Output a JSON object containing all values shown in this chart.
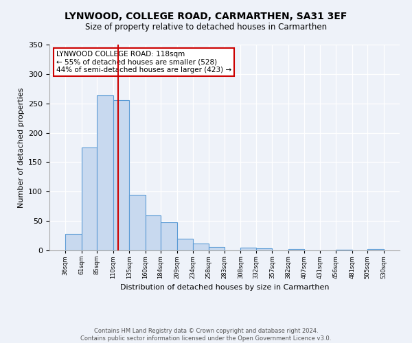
{
  "title": "LYNWOOD, COLLEGE ROAD, CARMARTHEN, SA31 3EF",
  "subtitle": "Size of property relative to detached houses in Carmarthen",
  "xlabel": "Distribution of detached houses by size in Carmarthen",
  "ylabel": "Number of detached properties",
  "bar_edges": [
    36,
    61,
    85,
    110,
    135,
    160,
    184,
    209,
    234,
    258,
    283,
    308,
    332,
    357,
    382,
    407,
    431,
    456,
    481,
    505,
    530
  ],
  "bar_heights": [
    28,
    175,
    264,
    255,
    95,
    60,
    48,
    20,
    12,
    6,
    0,
    5,
    4,
    0,
    2,
    0,
    0,
    1,
    0,
    2
  ],
  "bar_color": "#c8d9ef",
  "bar_edge_color": "#5b9bd5",
  "vline_x": 118,
  "vline_color": "#cc0000",
  "annotation_text": "LYNWOOD COLLEGE ROAD: 118sqm\n← 55% of detached houses are smaller (528)\n44% of semi-detached houses are larger (423) →",
  "annotation_box_color": "#cc0000",
  "ylim": [
    0,
    350
  ],
  "yticks": [
    0,
    50,
    100,
    150,
    200,
    250,
    300,
    350
  ],
  "tick_labels": [
    "36sqm",
    "61sqm",
    "85sqm",
    "110sqm",
    "135sqm",
    "160sqm",
    "184sqm",
    "209sqm",
    "234sqm",
    "258sqm",
    "283sqm",
    "308sqm",
    "332sqm",
    "357sqm",
    "382sqm",
    "407sqm",
    "431sqm",
    "456sqm",
    "481sqm",
    "505sqm",
    "530sqm"
  ],
  "footer": "Contains HM Land Registry data © Crown copyright and database right 2024.\nContains public sector information licensed under the Open Government Licence v3.0.",
  "bg_color": "#eef2f9"
}
